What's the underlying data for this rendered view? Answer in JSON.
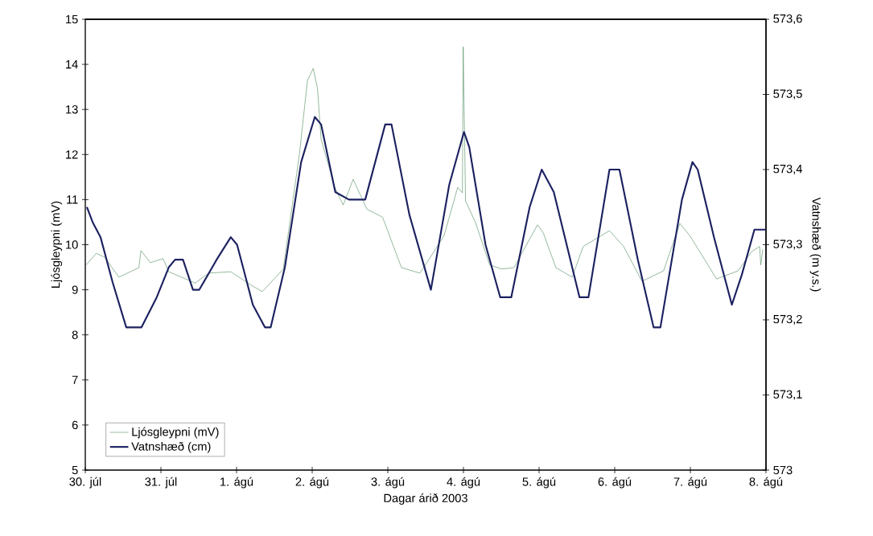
{
  "chart_data": {
    "type": "line",
    "xlabel": "Dagar árið 2003",
    "ylabel": "Ljósgleypni (mV)",
    "y2label": "Vatnshæð (m y.s.)",
    "xlim": [
      "2003-07-30",
      "2003-08-08"
    ],
    "xticks": [
      {
        "value": "2003-07-30",
        "label": "30. júl"
      },
      {
        "value": "2003-07-31",
        "label": "31. júl"
      },
      {
        "value": "2003-08-01",
        "label": "1. ágú"
      },
      {
        "value": "2003-08-02",
        "label": "2. ágú"
      },
      {
        "value": "2003-08-03",
        "label": "3. ágú"
      },
      {
        "value": "2003-08-04",
        "label": "4. ágú"
      },
      {
        "value": "2003-08-05",
        "label": "5. ágú"
      },
      {
        "value": "2003-08-06",
        "label": "6. ágú"
      },
      {
        "value": "2003-08-07",
        "label": "7. ágú"
      },
      {
        "value": "2003-08-08",
        "label": "8. ágú"
      }
    ],
    "ylim": [
      5,
      15
    ],
    "yticks": [
      5,
      6,
      7,
      8,
      9,
      10,
      11,
      12,
      13,
      14,
      15
    ],
    "y2lim": [
      573,
      573.6
    ],
    "y2ticks": [
      573,
      {
        "value": 573.1,
        "label": "573,1"
      },
      {
        "value": 573.2,
        "label": "573,2"
      },
      {
        "value": 573.3,
        "label": "573,3"
      },
      {
        "value": 573.4,
        "label": "573,4"
      },
      {
        "value": 573.5,
        "label": "573,5"
      },
      {
        "value": 573.6,
        "label": "573,6"
      }
    ],
    "legend": "bottom left",
    "grid": false,
    "marker": "none",
    "line_style": "solid",
    "series": [
      {
        "name": "Ljósgleypni (mV)",
        "color": "#4e8a5a",
        "x": [
          "2003-07-30T00:15",
          "2003-07-30T03:30",
          "2003-07-30T06:10",
          "2003-07-30T10:40",
          "2003-07-30T17:00",
          "2003-07-30T17:40",
          "2003-07-30T20:40",
          "2003-07-31T00:40",
          "2003-07-31T02:30",
          "2003-07-31T10:50",
          "2003-07-31T15:10",
          "2003-07-31T22:10",
          "2003-08-01T04:40",
          "2003-08-01T08:10",
          "2003-08-01T14:50",
          "2003-08-01T20:00",
          "2003-08-01T22:30",
          "2003-08-02T00:20",
          "2003-08-02T01:40",
          "2003-08-02T02:50",
          "2003-08-02T07:10",
          "2003-08-02T09:50",
          "2003-08-02T13:00",
          "2003-08-02T17:20",
          "2003-08-02T22:20",
          "2003-08-03T04:20",
          "2003-08-03T10:10",
          "2003-08-03T15:10",
          "2003-08-03T17:50",
          "2003-08-03T22:10",
          "2003-08-03T23:40",
          "2003-08-03T23:55",
          "2003-08-04T00:40",
          "2003-08-04T03:50",
          "2003-08-04T08:20",
          "2003-08-04T12:10",
          "2003-08-04T16:00",
          "2003-08-04T23:30",
          "2003-08-05T01:20",
          "2003-08-05T05:20",
          "2003-08-05T10:30",
          "2003-08-05T14:00",
          "2003-08-05T22:20",
          "2003-08-06T02:50",
          "2003-08-06T08:40",
          "2003-08-06T15:30",
          "2003-08-06T20:40",
          "2003-08-06T23:50",
          "2003-08-07T08:20",
          "2003-08-07T15:10",
          "2003-08-07T19:30",
          "2003-08-07T22:00",
          "2003-08-07T22:20",
          "2003-08-07T23:00"
        ],
        "values": [
          9.55,
          9.81,
          9.72,
          9.28,
          9.49,
          9.87,
          9.6,
          9.69,
          9.4,
          9.15,
          9.37,
          9.4,
          9.1,
          8.96,
          9.46,
          12.04,
          13.64,
          13.91,
          13.47,
          12.34,
          11.27,
          10.88,
          11.45,
          10.79,
          10.61,
          9.49,
          9.37,
          9.9,
          10.2,
          11.27,
          11.15,
          14.39,
          10.97,
          10.49,
          9.55,
          9.46,
          9.49,
          10.44,
          10.26,
          9.49,
          9.28,
          9.96,
          10.31,
          9.96,
          9.19,
          9.42,
          10.47,
          10.2,
          9.24,
          9.42,
          9.85,
          9.96,
          9.55,
          9.9
        ]
      },
      {
        "name": "Vatnshæð (cm)",
        "color": "#1c2160",
        "axis": "y2",
        "x": [
          "2003-07-30T00:30",
          "2003-07-30T02:20",
          "2003-07-30T04:50",
          "2003-07-30T08:40",
          "2003-07-30T13:00",
          "2003-07-30T17:50",
          "2003-07-30T22:40",
          "2003-07-31T02:30",
          "2003-07-31T04:30",
          "2003-07-31T07:00",
          "2003-07-31T10:10",
          "2003-07-31T12:10",
          "2003-07-31T17:40",
          "2003-07-31T22:10",
          "2003-08-01T00:10",
          "2003-08-01T05:10",
          "2003-08-01T09:00",
          "2003-08-01T10:50",
          "2003-08-01T15:20",
          "2003-08-01T20:30",
          "2003-08-02T00:50",
          "2003-08-02T02:50",
          "2003-08-02T07:20",
          "2003-08-02T11:40",
          "2003-08-02T16:50",
          "2003-08-02T23:10",
          "2003-08-03T01:10",
          "2003-08-03T06:50",
          "2003-08-03T13:40",
          "2003-08-03T19:30",
          "2003-08-04T00:10",
          "2003-08-04T01:50",
          "2003-08-04T07:00",
          "2003-08-04T11:40",
          "2003-08-04T15:10",
          "2003-08-04T21:00",
          "2003-08-05T00:50",
          "2003-08-05T04:40",
          "2003-08-05T12:50",
          "2003-08-05T15:40",
          "2003-08-05T22:20",
          "2003-08-06T01:30",
          "2003-08-06T07:20",
          "2003-08-06T12:20",
          "2003-08-06T14:30",
          "2003-08-06T21:20",
          "2003-08-07T00:40",
          "2003-08-07T02:20",
          "2003-08-07T07:30",
          "2003-08-07T13:10",
          "2003-08-07T16:20",
          "2003-08-07T20:20",
          "2003-08-08T00:00"
        ],
        "values": [
          573.35,
          573.33,
          573.31,
          573.25,
          573.19,
          573.19,
          573.23,
          573.27,
          573.28,
          573.28,
          573.24,
          573.24,
          573.28,
          573.31,
          573.3,
          573.22,
          573.19,
          573.19,
          573.27,
          573.41,
          573.47,
          573.46,
          573.37,
          573.36,
          573.36,
          573.46,
          573.46,
          573.34,
          573.24,
          573.38,
          573.45,
          573.43,
          573.3,
          573.23,
          573.23,
          573.35,
          573.4,
          573.37,
          573.23,
          573.23,
          573.4,
          573.4,
          573.28,
          573.19,
          573.19,
          573.36,
          573.41,
          573.4,
          573.31,
          573.22,
          573.26,
          573.32,
          573.32
        ]
      }
    ]
  }
}
